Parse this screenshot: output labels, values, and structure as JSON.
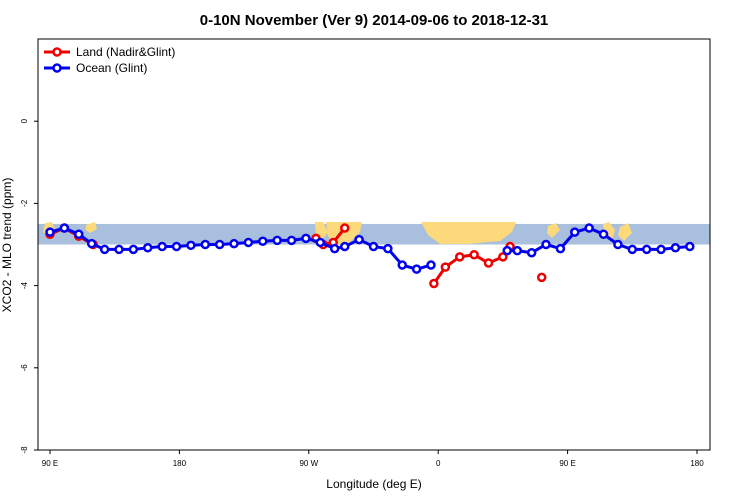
{
  "chart_data": {
    "type": "line",
    "title": "0-10N November (Ver 9)   2014-09-06 to 2018-12-31",
    "xlabel": "Longitude (deg E)",
    "ylabel": "XCO2 - MLO trend (ppm)",
    "xlim": [
      90,
      540
    ],
    "ylim": [
      -8,
      2
    ],
    "x_ticks": [
      {
        "value": 90,
        "label": "90 E"
      },
      {
        "value": 180,
        "label": "180"
      },
      {
        "value": 270,
        "label": "90 W"
      },
      {
        "value": 360,
        "label": "0"
      },
      {
        "value": 450,
        "label": "90 E"
      },
      {
        "value": 540,
        "label": "180"
      }
    ],
    "y_ticks": [
      {
        "value": 0,
        "label": "0"
      },
      {
        "value": -2,
        "label": "-2"
      },
      {
        "value": -4,
        "label": "-4"
      },
      {
        "value": -6,
        "label": "-6"
      },
      {
        "value": -8,
        "label": "-8"
      }
    ],
    "map_band": {
      "ymin": -3.0,
      "ymax": -2.5,
      "ocean_color": "#a8bfde",
      "land_color": "#fcd97a"
    },
    "legend_position": "top-left",
    "series": [
      {
        "name": "Land (Nadir&Glint)",
        "color": "#ee0000",
        "segments": [
          [
            [
              90,
              -2.75
            ],
            [
              100,
              -2.6
            ],
            [
              110,
              -2.8
            ],
            [
              120,
              -3.0
            ]
          ],
          [
            [
              275,
              -2.85
            ],
            [
              280,
              -3.0
            ],
            [
              287,
              -2.95
            ],
            [
              295,
              -2.6
            ]
          ],
          [
            [
              357,
              -3.95
            ],
            [
              365,
              -3.55
            ],
            [
              375,
              -3.3
            ],
            [
              385,
              -3.25
            ],
            [
              395,
              -3.45
            ],
            [
              405,
              -3.3
            ],
            [
              410,
              -3.05
            ]
          ],
          [
            [
              432,
              -3.8
            ]
          ]
        ]
      },
      {
        "name": "Ocean (Glint)",
        "color": "#0000ee",
        "segments": [
          [
            [
              90,
              -2.7
            ],
            [
              100,
              -2.6
            ],
            [
              110,
              -2.75
            ],
            [
              119,
              -2.98
            ],
            [
              128,
              -3.12
            ],
            [
              138,
              -3.12
            ],
            [
              148,
              -3.12
            ],
            [
              158,
              -3.08
            ],
            [
              168,
              -3.05
            ],
            [
              178,
              -3.05
            ],
            [
              188,
              -3.02
            ],
            [
              198,
              -3.0
            ],
            [
              208,
              -3.0
            ],
            [
              218,
              -2.98
            ],
            [
              228,
              -2.95
            ],
            [
              238,
              -2.92
            ],
            [
              248,
              -2.9
            ],
            [
              258,
              -2.9
            ],
            [
              268,
              -2.85
            ],
            [
              278,
              -2.95
            ],
            [
              288,
              -3.1
            ],
            [
              295,
              -3.05
            ],
            [
              305,
              -2.88
            ],
            [
              315,
              -3.05
            ],
            [
              325,
              -3.1
            ],
            [
              335,
              -3.5
            ],
            [
              345,
              -3.6
            ],
            [
              355,
              -3.5
            ]
          ],
          [
            [
              408,
              -3.15
            ],
            [
              415,
              -3.15
            ],
            [
              425,
              -3.2
            ],
            [
              435,
              -3.0
            ],
            [
              445,
              -3.1
            ],
            [
              455,
              -2.7
            ],
            [
              465,
              -2.6
            ],
            [
              475,
              -2.75
            ],
            [
              485,
              -3.0
            ],
            [
              495,
              -3.12
            ],
            [
              505,
              -3.12
            ],
            [
              515,
              -3.12
            ],
            [
              525,
              -3.08
            ],
            [
              535,
              -3.05
            ]
          ]
        ]
      }
    ]
  }
}
